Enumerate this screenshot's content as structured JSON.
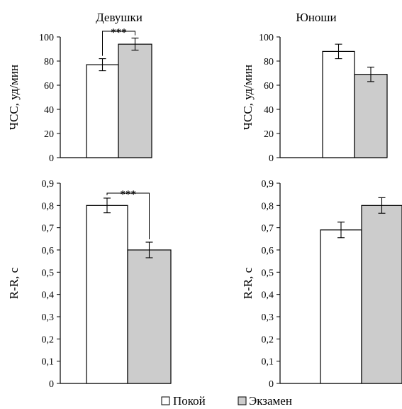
{
  "legend": {
    "rest_label": "Покой",
    "exam_label": "Экзамен",
    "rest_color": "#ffffff",
    "exam_color": "#cccccc"
  },
  "chart_data": [
    {
      "type": "bar",
      "title": "Девушки",
      "ylabel": "ЧСС, уд/мин",
      "ylim": [
        0,
        100
      ],
      "yticks": [
        "0",
        "20",
        "40",
        "60",
        "80",
        "100"
      ],
      "tick_values": [
        0,
        20,
        40,
        60,
        80,
        100
      ],
      "series": [
        {
          "name": "Покой",
          "values": [
            77
          ],
          "error": [
            5
          ]
        },
        {
          "name": "Экзамен",
          "values": [
            94
          ],
          "error": [
            5
          ]
        }
      ],
      "significance": "***"
    },
    {
      "type": "bar",
      "title": "Юноши",
      "ylabel": "ЧСС, уд/мин",
      "ylim": [
        0,
        100
      ],
      "yticks": [
        "0",
        "20",
        "40",
        "60",
        "80",
        "100"
      ],
      "tick_values": [
        0,
        20,
        40,
        60,
        80,
        100
      ],
      "series": [
        {
          "name": "Покой",
          "values": [
            88
          ],
          "error": [
            6
          ]
        },
        {
          "name": "Экзамен",
          "values": [
            69
          ],
          "error": [
            6
          ]
        }
      ],
      "significance": ""
    },
    {
      "type": "bar",
      "title": "",
      "ylabel": "R-R, c",
      "ylim": [
        0,
        0.9
      ],
      "yticks": [
        "0",
        "0,1",
        "0,2",
        "0,3",
        "0,4",
        "0,5",
        "0,6",
        "0,7",
        "0,8",
        "0,9"
      ],
      "tick_values": [
        0,
        0.1,
        0.2,
        0.3,
        0.4,
        0.5,
        0.6,
        0.7,
        0.8,
        0.9
      ],
      "series": [
        {
          "name": "Покой",
          "values": [
            0.8
          ],
          "error": [
            0.033
          ]
        },
        {
          "name": "Экзамен",
          "values": [
            0.6
          ],
          "error": [
            0.035
          ]
        }
      ],
      "significance": "***"
    },
    {
      "type": "bar",
      "title": "",
      "ylabel": "R-R, c",
      "ylim": [
        0,
        0.9
      ],
      "yticks": [
        "0",
        "0,1",
        "0,2",
        "0,3",
        "0,4",
        "0,5",
        "0,6",
        "0,7",
        "0,8",
        "0,9"
      ],
      "tick_values": [
        0,
        0.1,
        0.2,
        0.3,
        0.4,
        0.5,
        0.6,
        0.7,
        0.8,
        0.9
      ],
      "series": [
        {
          "name": "Покой",
          "values": [
            0.69
          ],
          "error": [
            0.035
          ]
        },
        {
          "name": "Экзамен",
          "values": [
            0.8
          ],
          "error": [
            0.035
          ]
        }
      ],
      "significance": ""
    }
  ]
}
